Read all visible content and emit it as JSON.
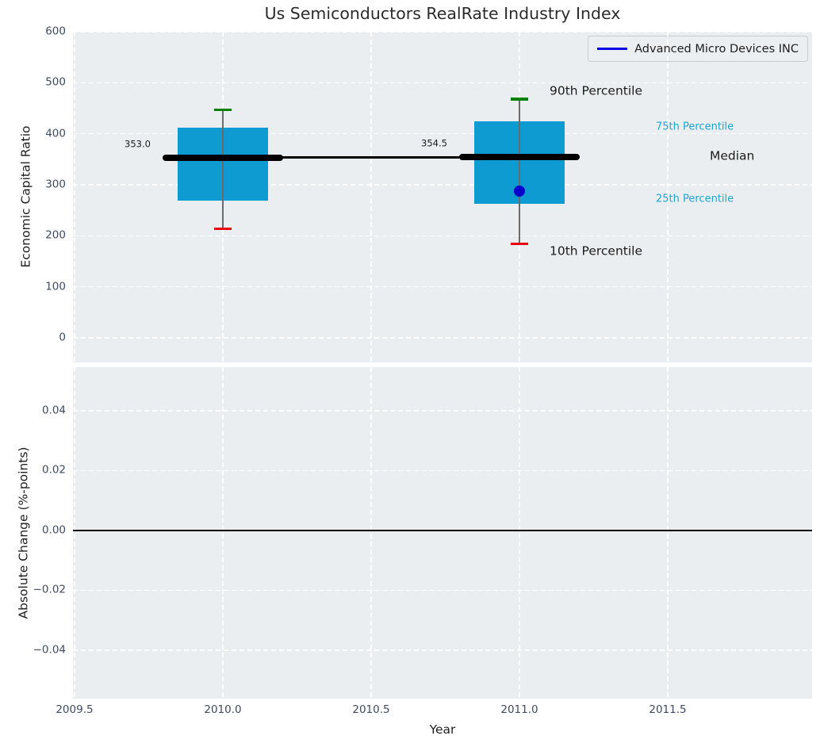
{
  "colors": {
    "axes_bg": "#eaeef0",
    "grid": "#ffffff",
    "box_fill": "#0d9bd1",
    "whisker": "#6b6b6b",
    "cap_high": "#008000",
    "cap_low": "#e8000b",
    "median_line": "#000000",
    "company_point": "#0000cc",
    "legend_line": "#0000e6",
    "tick_label": "#3e4b60",
    "percentile_label": "#1da6d2",
    "dark_text": "#1c1c1c",
    "zero_line": "#000000"
  },
  "chart_data": {
    "type": "boxplot",
    "title": "Us Semiconductors RealRate Industry Index",
    "legend": {
      "label": "Advanced Micro Devices INC"
    },
    "x_axis": {
      "label": "Year",
      "lim": [
        2009.4947,
        2011.9866
      ],
      "ticks": [
        {
          "v": 2009.5,
          "label": "2009.5"
        },
        {
          "v": 2010.0,
          "label": "2010.0"
        },
        {
          "v": 2010.5,
          "label": "2010.5"
        },
        {
          "v": 2011.0,
          "label": "2011.0"
        },
        {
          "v": 2011.5,
          "label": "2011.5"
        }
      ]
    },
    "panels": [
      {
        "type": "boxplot",
        "ylabel": "Economic Capital Ratio",
        "ylim": [
          -48.05,
          600
        ],
        "grid": true,
        "y_ticks": [
          {
            "v": 600,
            "label": "600"
          },
          {
            "v": 500,
            "label": "500"
          },
          {
            "v": 400,
            "label": "400"
          },
          {
            "v": 300,
            "label": "300"
          },
          {
            "v": 200,
            "label": "200"
          },
          {
            "v": 100,
            "label": "100"
          },
          {
            "v": 0,
            "label": "0"
          }
        ],
        "boxes": [
          {
            "x": 2010.0,
            "p10": 214,
            "p25": 269,
            "median": 353.0,
            "p75": 412,
            "p90": 447,
            "median_label": "353.0"
          },
          {
            "x": 2011.0,
            "p10": 184,
            "p25": 262,
            "median": 354.5,
            "p75": 425,
            "p90": 468,
            "median_label": "354.5"
          }
        ],
        "company_points": [
          {
            "name": "Advanced Micro Devices INC",
            "x": 2011.0,
            "y": 287
          }
        ],
        "annotations": [
          {
            "text": "90th Percentile",
            "anchor": "p90"
          },
          {
            "text": "75th Percentile",
            "anchor": "p75"
          },
          {
            "text": "Median",
            "anchor": "median"
          },
          {
            "text": "25th Percentile",
            "anchor": "p25"
          },
          {
            "text": "10th Percentile",
            "anchor": "p10"
          }
        ]
      },
      {
        "type": "line",
        "ylabel": "Absolute Change (%-points)",
        "ylim": [
          -0.05616,
          0.05457
        ],
        "grid": true,
        "zero_line": true,
        "y_ticks": [
          {
            "v": 0.04,
            "label": "0.04"
          },
          {
            "v": 0.02,
            "label": "0.02"
          },
          {
            "v": 0.0,
            "label": "0.00"
          },
          {
            "v": -0.02,
            "label": "−0.02"
          },
          {
            "v": -0.04,
            "label": "−0.04"
          }
        ],
        "series": []
      }
    ]
  }
}
